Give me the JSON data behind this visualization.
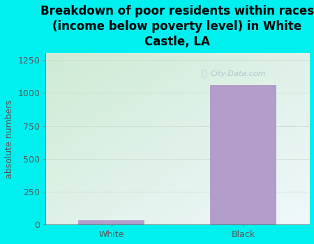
{
  "categories": [
    "White",
    "Black"
  ],
  "values": [
    35,
    1060
  ],
  "bar_color": "#b39dca",
  "title": "Breakdown of poor residents within races\n(income below poverty level) in White\nCastle, LA",
  "ylabel": "absolute numbers",
  "ylim": [
    0,
    1300
  ],
  "yticks": [
    0,
    250,
    500,
    750,
    1000,
    1250
  ],
  "background_outer": "#00f0f0",
  "background_inner_topleft": "#d4edda",
  "background_inner_topright": "#e8f4f8",
  "background_inner_bottomleft": "#eaf7ea",
  "background_inner_bottomright": "#f5fbfc",
  "title_fontsize": 12,
  "ylabel_fontsize": 9,
  "tick_fontsize": 9,
  "bar_width": 0.5,
  "title_color": "#000000",
  "axis_color": "#555555",
  "watermark_text": "City-Data.com",
  "watermark_color": "#aabbcc",
  "grid_color": "#ccddcc"
}
